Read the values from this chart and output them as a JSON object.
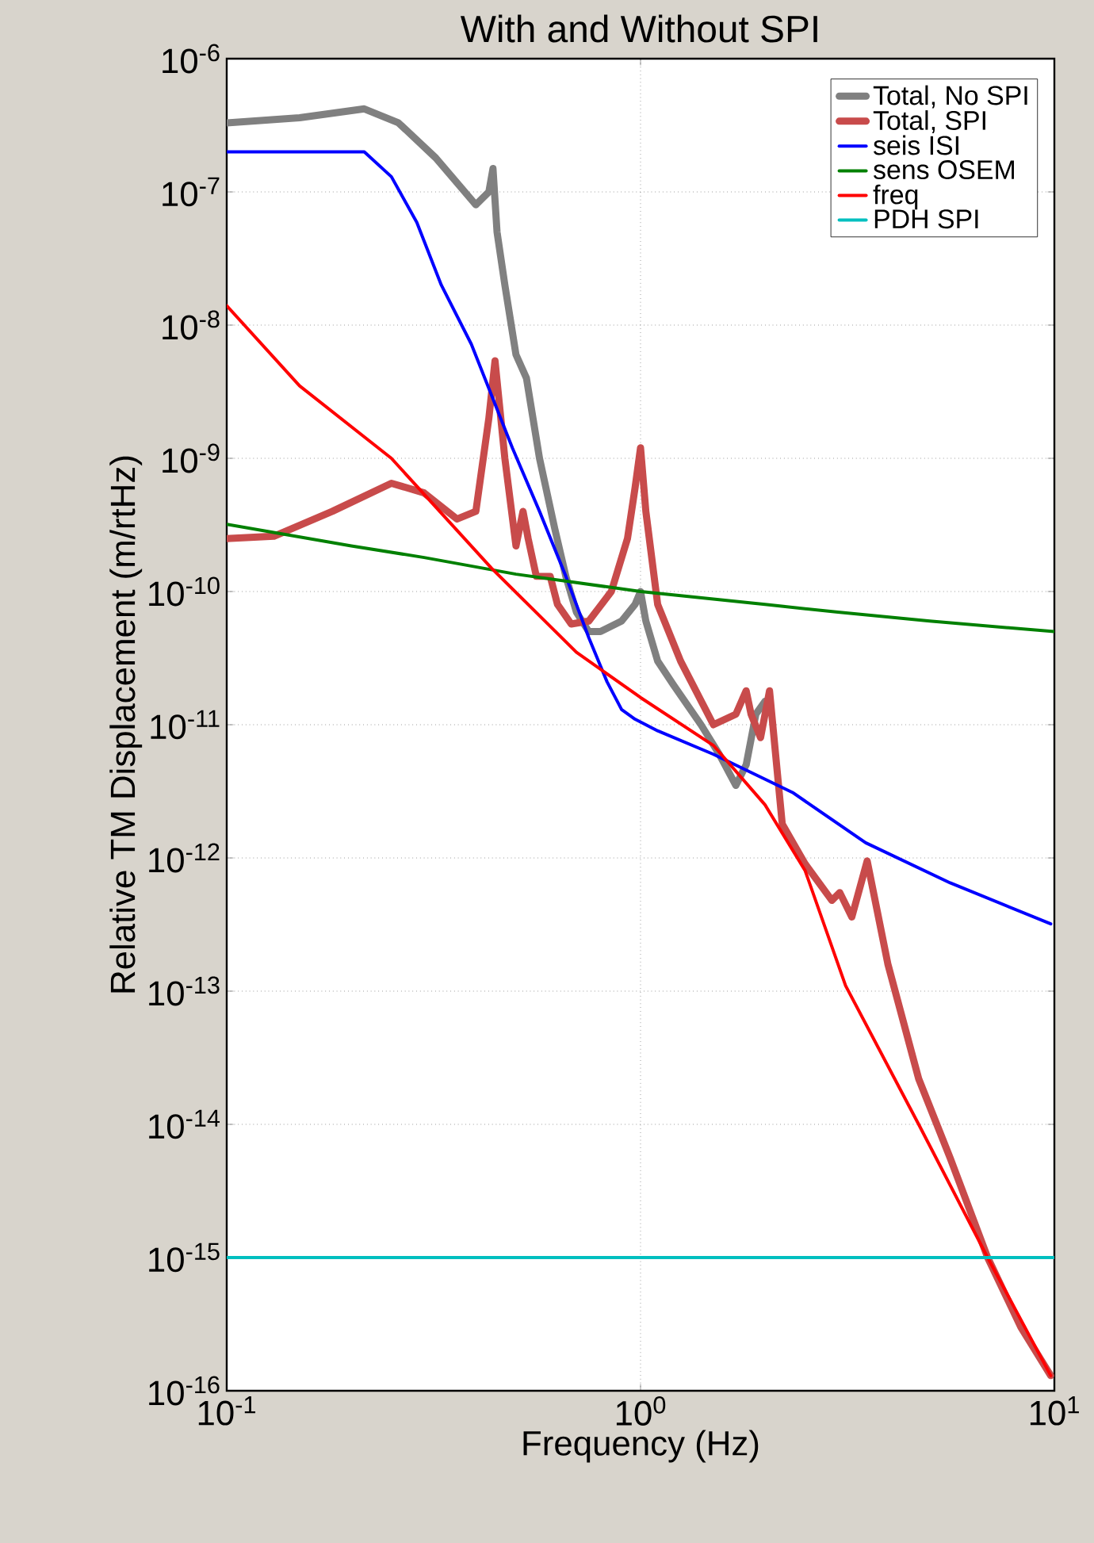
{
  "chart_data": {
    "type": "line",
    "title": "With and Without SPI",
    "xlabel": "Frequency (Hz)",
    "ylabel": "Relative TM Displacement (m/rtHz)",
    "log": "xy",
    "grid": true,
    "legend": "top right",
    "marker": "none",
    "line_style": "solid",
    "xlim": [
      0.1,
      10
    ],
    "ylim": [
      1e-16,
      1e-06
    ],
    "xticks": [
      {
        "value": 0.1,
        "label": "10$^{-1}$"
      },
      {
        "value": 1,
        "label": "10$^{0}$"
      },
      {
        "value": 10,
        "label": "10$^{1}$"
      }
    ],
    "yticks": [
      {
        "value": 1e-16,
        "label": "10$^{-16}$"
      },
      {
        "value": 1e-15,
        "label": "10$^{-15}$"
      },
      {
        "value": 1e-14,
        "label": "10$^{-14}$"
      },
      {
        "value": 1e-13,
        "label": "10$^{-13}$"
      },
      {
        "value": 1e-12,
        "label": "10$^{-12}$"
      },
      {
        "value": 1e-11,
        "label": "10$^{-11}$"
      },
      {
        "value": 1e-10,
        "label": "10$^{-10}$"
      },
      {
        "value": 1e-09,
        "label": "10$^{-9}$"
      },
      {
        "value": 1e-08,
        "label": "10$^{-8}$"
      },
      {
        "value": 1e-07,
        "label": "10$^{-7}$"
      },
      {
        "value": 1e-06,
        "label": "10$^{-6}$"
      }
    ],
    "series": [
      {
        "name": "Total, No SPI",
        "color": "#808080",
        "x": [
          0.1,
          0.15,
          0.215,
          0.26,
          0.32,
          0.4,
          0.43,
          0.44,
          0.45,
          0.47,
          0.5,
          0.53,
          0.57,
          0.62,
          0.66,
          0.7,
          0.75,
          0.8,
          0.9,
          0.97,
          1.0,
          1.03,
          1.1,
          1.2,
          1.4,
          1.55,
          1.7,
          1.8,
          1.9,
          2.0
        ],
        "values": [
          3.3e-07,
          3.6e-07,
          4.2e-07,
          3.3e-07,
          1.8e-07,
          8e-08,
          1e-07,
          1.5e-07,
          5e-08,
          2e-08,
          6e-09,
          4e-09,
          1e-09,
          3e-10,
          1.3e-10,
          7e-11,
          5e-11,
          5e-11,
          6e-11,
          8e-11,
          1e-10,
          6e-11,
          3e-11,
          2e-11,
          1e-11,
          6e-12,
          3.5e-12,
          5e-12,
          1.2e-11,
          1.5e-11
        ]
      },
      {
        "name": "Total, SPI",
        "color": "#c84b4b",
        "x": [
          0.1,
          0.13,
          0.18,
          0.25,
          0.3,
          0.36,
          0.4,
          0.43,
          0.445,
          0.47,
          0.5,
          0.52,
          0.535,
          0.56,
          0.605,
          0.63,
          0.68,
          0.75,
          0.85,
          0.93,
          0.97,
          1.0,
          1.03,
          1.1,
          1.25,
          1.5,
          1.7,
          1.8,
          1.85,
          1.95,
          2.05,
          2.2,
          2.5,
          2.9,
          3.03,
          3.24,
          3.53,
          3.96,
          4.7,
          5.6,
          6.9,
          8.3,
          9.8
        ],
        "values": [
          2.5e-10,
          2.6e-10,
          4e-10,
          6.5e-10,
          5.5e-10,
          3.5e-10,
          4e-10,
          2e-09,
          5.4e-09,
          1e-09,
          2.2e-10,
          4e-10,
          2.5e-10,
          1.3e-10,
          1.3e-10,
          8e-11,
          5.7e-11,
          6e-11,
          1e-10,
          2.5e-10,
          6e-10,
          1.2e-09,
          4e-10,
          8e-11,
          3e-11,
          1e-11,
          1.2e-11,
          1.8e-11,
          1.2e-11,
          8e-12,
          1.8e-11,
          1.8e-12,
          9e-13,
          4.8e-13,
          5.5e-13,
          3.6e-13,
          9.5e-13,
          1.6e-13,
          2.2e-14,
          5.6e-15,
          1e-15,
          3e-16,
          1.3e-16
        ]
      },
      {
        "name": "seis  ISI",
        "color": "#0000ff",
        "x": [
          0.1,
          0.15,
          0.215,
          0.25,
          0.288,
          0.33,
          0.39,
          0.49,
          0.57,
          0.66,
          0.75,
          0.83,
          0.9,
          0.97,
          1.1,
          1.5,
          2.33,
          3.5,
          5.6,
          9.8
        ],
        "values": [
          2e-07,
          2e-07,
          2e-07,
          1.3e-07,
          5.9e-08,
          2e-08,
          7.2e-09,
          1.2e-09,
          4e-10,
          1.3e-10,
          4.5e-11,
          2.1e-11,
          1.3e-11,
          1.1e-11,
          9e-12,
          6e-12,
          3.1e-12,
          1.3e-12,
          6.5e-13,
          3.2e-13
        ]
      },
      {
        "name": "sens OSEM",
        "color": "#008000",
        "x": [
          0.1,
          0.2,
          0.3,
          0.5,
          1,
          2,
          3,
          5,
          10
        ],
        "values": [
          3.2e-10,
          2.2e-10,
          1.8e-10,
          1.35e-10,
          1e-10,
          8e-11,
          7e-11,
          6e-11,
          5e-11
        ]
      },
      {
        "name": "freq",
        "color": "#ff0000",
        "x": [
          0.1,
          0.15,
          0.25,
          0.436,
          0.7,
          1.0,
          1.5,
          2.0,
          2.5,
          3.13,
          4.7,
          6.9,
          9.8
        ],
        "values": [
          1.4e-08,
          3.5e-09,
          1e-09,
          1.5e-10,
          3.5e-11,
          1.6e-11,
          7e-12,
          2.5e-12,
          8e-13,
          1.1e-13,
          1e-14,
          1e-15,
          1.3e-16
        ]
      },
      {
        "name": "PDH SPI",
        "color": "#00bfbf",
        "x": [
          0.1,
          10
        ],
        "values": [
          1e-15,
          1e-15
        ]
      }
    ]
  }
}
